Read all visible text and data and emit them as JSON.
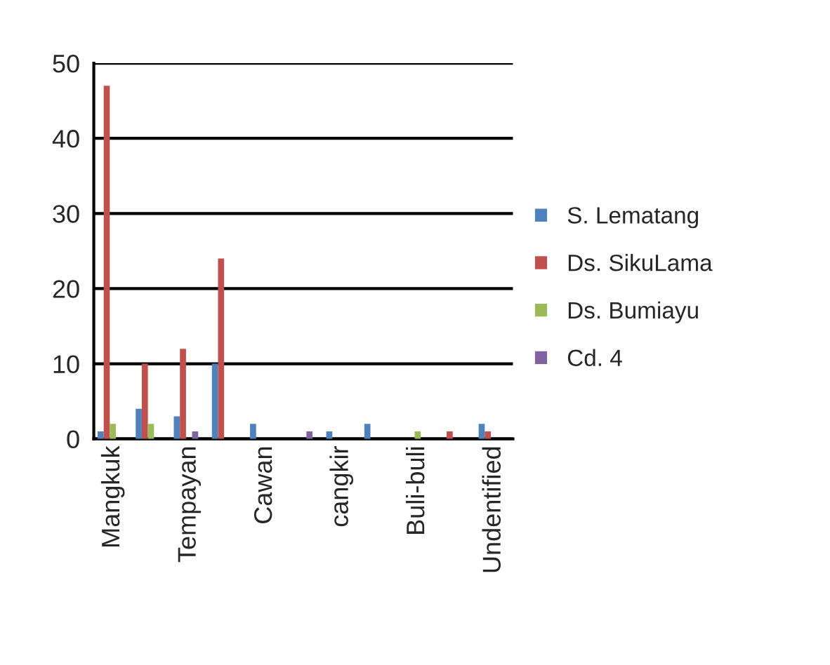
{
  "chart_data": {
    "type": "bar",
    "categories": [
      "Mangkuk",
      null,
      "Tempayan",
      null,
      "Cawan",
      null,
      "cangkir",
      null,
      "Buli-buli",
      null,
      "Undentified"
    ],
    "series": [
      {
        "name": "S. Lematang",
        "color": "#4f81bd",
        "values": [
          1,
          4,
          3,
          10,
          2,
          0,
          1,
          2,
          0,
          0,
          2
        ]
      },
      {
        "name": "Ds. SikuLama",
        "color": "#c0504d",
        "values": [
          47,
          10,
          12,
          24,
          0,
          0,
          0,
          0,
          0,
          1,
          1
        ]
      },
      {
        "name": "Ds. Bumiayu",
        "color": "#9bbb59",
        "values": [
          2,
          2,
          0,
          0,
          0,
          0,
          0,
          0,
          1,
          0,
          0
        ]
      },
      {
        "name": "Cd. 4",
        "color": "#8064a2",
        "values": [
          0,
          0,
          1,
          0,
          0,
          1,
          0,
          0,
          0,
          0,
          0
        ]
      }
    ],
    "ylim": [
      0,
      50
    ],
    "yticks": [
      0,
      10,
      20,
      30,
      40,
      50
    ],
    "grid": "y",
    "legend": "right"
  }
}
